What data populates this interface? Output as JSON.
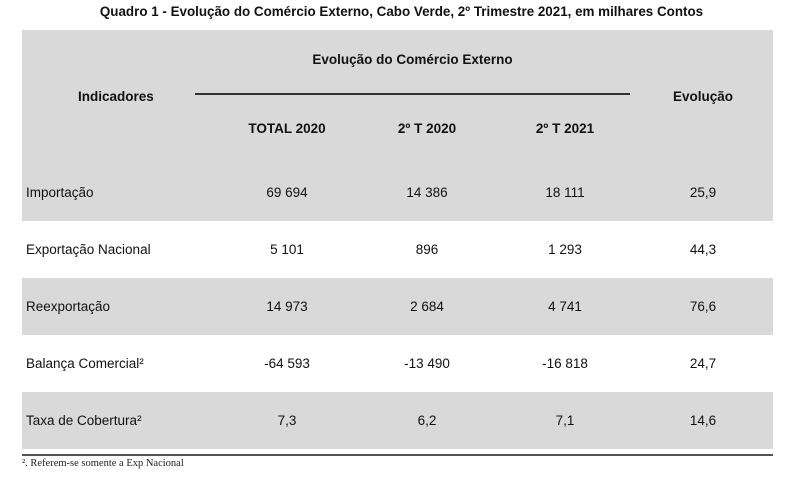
{
  "title": "Quadro 1 - Evolução do Comércio Externo, Cabo Verde, 2º Trimestre 2021, em milhares Contos",
  "header": {
    "indicadores": "Indicadores",
    "group": "Evolução do Comércio Externo",
    "col_total_2020": "TOTAL 2020",
    "col_2t_2020": "2º T 2020",
    "col_2t_2021": "2º T 2021",
    "col_evolucao": "Evolução"
  },
  "rows": [
    {
      "label": "Importação",
      "total_2020": "69 694",
      "t2_2020": "14 386",
      "t2_2021": "18 111",
      "evolucao": "25,9"
    },
    {
      "label": "Exportação Nacional",
      "total_2020": "5 101",
      "t2_2020": "896",
      "t2_2021": "1 293",
      "evolucao": "44,3"
    },
    {
      "label": "Reexportação",
      "total_2020": "14 973",
      "t2_2020": "2 684",
      "t2_2021": "4 741",
      "evolucao": "76,6"
    },
    {
      "label": "Balança Comercial²",
      "total_2020": "-64 593",
      "t2_2020": "-13 490",
      "t2_2021": "-16 818",
      "evolucao": "24,7"
    },
    {
      "label": "Taxa de Cobertura²",
      "total_2020": "7,3",
      "t2_2020": "6,2",
      "t2_2021": "7,1",
      "evolucao": "14,6"
    }
  ],
  "footnote": "². Referem-se somente a Exp Nacional",
  "colors": {
    "shade": "#d9d9d9",
    "text": "#111111"
  }
}
